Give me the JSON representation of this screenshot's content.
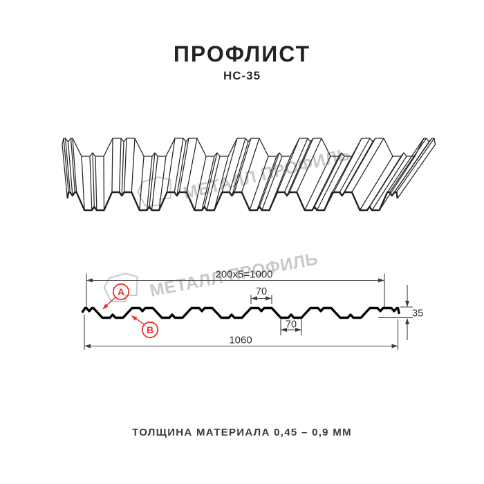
{
  "header": {
    "title": "ПРОФЛИСТ",
    "subtitle": "НС-35"
  },
  "watermark": {
    "text": "МЕТАЛЛ ПРОФИЛЬ"
  },
  "cross_section": {
    "dim_top_total": "200x5=1000",
    "dim_crest_width": "70",
    "dim_valley_width": "70",
    "dim_height": "35",
    "dim_overall_width": "1060",
    "callout_a": "A",
    "callout_b": "B"
  },
  "footer": {
    "thickness_note": "ТОЛЩИНА МАТЕРИАЛА 0,45 – 0,9 ММ"
  },
  "colors": {
    "accent_red": "#e8322a",
    "watermark_gray": "#c9c9c9",
    "line_black": "#000000"
  }
}
